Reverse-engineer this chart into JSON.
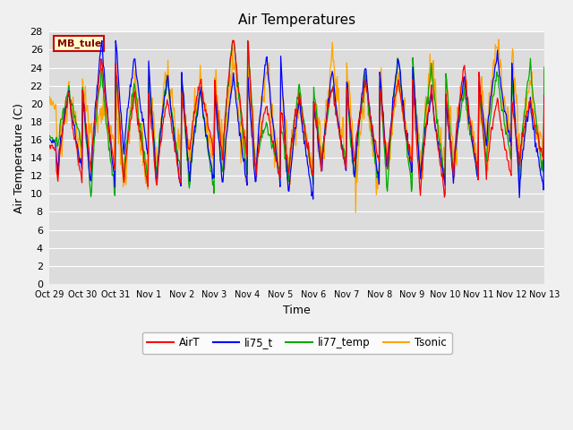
{
  "title": "Air Temperatures",
  "xlabel": "Time",
  "ylabel": "Air Temperature (C)",
  "ylim": [
    0,
    28
  ],
  "yticks": [
    0,
    2,
    4,
    6,
    8,
    10,
    12,
    14,
    16,
    18,
    20,
    22,
    24,
    26,
    28
  ],
  "xtick_labels": [
    "Oct 29",
    "Oct 30",
    "Oct 31",
    "Nov 1",
    "Nov 2",
    "Nov 3",
    "Nov 4",
    "Nov 5",
    "Nov 6",
    "Nov 7",
    "Nov 8",
    "Nov 9",
    "Nov 10",
    "Nov 11",
    "Nov 12",
    "Nov 13"
  ],
  "colors": {
    "AirT": "#ff0000",
    "li75_t": "#0000ff",
    "li77_temp": "#00aa00",
    "Tsonic": "#ffa500"
  },
  "legend_label": "MB_tule",
  "legend_box_facecolor": "#ffffcc",
  "legend_box_edgecolor": "#cc0000",
  "plot_bg": "#dcdcdc",
  "fig_bg": "#f0f0f0",
  "grid_color": "#ffffff",
  "title_fontsize": 11,
  "label_fontsize": 9,
  "tick_fontsize": 8
}
